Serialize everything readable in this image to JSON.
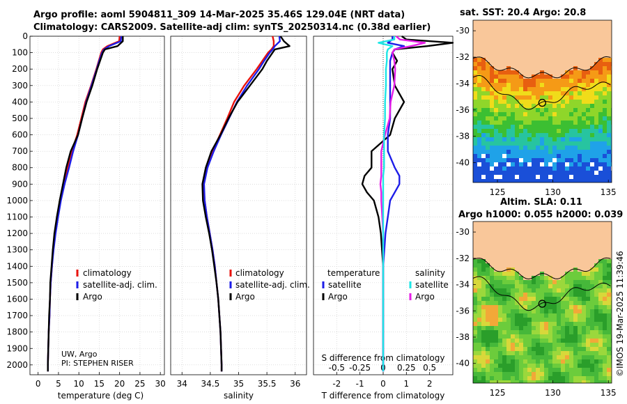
{
  "title_line1": "Argo profile: aoml 5904811_309 14-Mar-2025 35.46S 129.04E (NRT data)",
  "title_line2": "Climatology: CARS2009. Satellite-adj clim: synTS_20250314.nc (0.38d earlier)",
  "watermark": "©IMOS 19-Mar-2025 11:39:46",
  "colors": {
    "climatology": "#e8120c",
    "satellite": "#1d1de8",
    "argo": "#000000",
    "s_satellite": "#1de6e6",
    "s_argo": "#e61de6",
    "land": "#f9c79a"
  },
  "chart_data": [
    {
      "type": "line",
      "name": "temperature-profile",
      "xlabel": "temperature (deg C)",
      "ylabel": "",
      "xlim": [
        -2,
        31
      ],
      "ylim": [
        2060,
        0
      ],
      "xticks": [
        0,
        5,
        10,
        15,
        20,
        25,
        30
      ],
      "yticks": [
        0,
        100,
        200,
        300,
        400,
        500,
        600,
        700,
        800,
        900,
        1000,
        1100,
        1200,
        1300,
        1400,
        1500,
        1600,
        1700,
        1800,
        1900,
        2000
      ],
      "legend": [
        "climatology",
        "satellite-adj. clim.",
        "Argo"
      ],
      "legend_position": "lower-right",
      "annotation": [
        "UW, Argo",
        "PI: STEPHEN RISER"
      ],
      "depth": [
        0,
        30,
        60,
        80,
        100,
        150,
        200,
        300,
        400,
        500,
        600,
        700,
        800,
        900,
        1000,
        1100,
        1200,
        1300,
        1400,
        1500,
        1600,
        1700,
        1800,
        1900,
        2000,
        2040
      ],
      "series": [
        {
          "name": "climatology",
          "values": [
            20.0,
            19.9,
            17.0,
            15.9,
            15.5,
            14.9,
            14.3,
            13.0,
            11.6,
            10.6,
            9.6,
            8.3,
            7.3,
            6.2,
            5.4,
            4.7,
            4.1,
            3.7,
            3.4,
            3.1,
            2.9,
            2.8,
            2.6,
            2.5,
            2.4,
            2.4
          ]
        },
        {
          "name": "satellite-adj. clim.",
          "values": [
            20.4,
            20.3,
            17.4,
            16.2,
            15.7,
            15.0,
            14.4,
            13.1,
            11.8,
            10.8,
            9.8,
            8.6,
            7.6,
            6.5,
            5.6,
            4.9,
            4.3,
            3.8,
            3.4,
            3.1,
            2.9,
            2.8,
            2.6,
            2.5,
            2.4,
            2.4
          ]
        },
        {
          "name": "Argo",
          "values": [
            20.8,
            20.8,
            19.5,
            16.4,
            15.9,
            15.2,
            14.5,
            13.3,
            11.9,
            10.8,
            9.8,
            8.0,
            6.9,
            6.1,
            5.3,
            4.6,
            4.0,
            3.6,
            3.3,
            3.0,
            2.9,
            2.7,
            2.6,
            2.5,
            2.4,
            2.4
          ]
        }
      ]
    },
    {
      "type": "line",
      "name": "salinity-profile",
      "xlabel": "salinity",
      "ylabel": "",
      "xlim": [
        33.8,
        36.2
      ],
      "ylim": [
        2060,
        0
      ],
      "xticks": [
        34,
        34.5,
        35,
        35.5,
        36
      ],
      "legend": [
        "climatology",
        "satellite-adj. clim.",
        "Argo"
      ],
      "legend_position": "lower-right",
      "depth": [
        0,
        30,
        60,
        80,
        100,
        150,
        200,
        300,
        400,
        500,
        600,
        700,
        800,
        900,
        1000,
        1100,
        1200,
        1300,
        1400,
        1500,
        1600,
        1700,
        1800,
        1900,
        2000,
        2040
      ],
      "series": [
        {
          "name": "climatology",
          "values": [
            35.6,
            35.62,
            35.62,
            35.58,
            35.52,
            35.42,
            35.32,
            35.1,
            34.92,
            34.8,
            34.67,
            34.54,
            34.43,
            34.38,
            34.4,
            34.44,
            34.49,
            34.54,
            34.58,
            34.61,
            34.64,
            34.66,
            34.68,
            34.69,
            34.7,
            34.7
          ]
        },
        {
          "name": "satellite-adj. clim.",
          "values": [
            35.72,
            35.73,
            35.64,
            35.6,
            35.55,
            35.45,
            35.36,
            35.15,
            34.97,
            34.83,
            34.69,
            34.56,
            34.45,
            34.39,
            34.4,
            34.44,
            34.49,
            34.54,
            34.58,
            34.61,
            34.64,
            34.66,
            34.68,
            34.69,
            34.7,
            34.7
          ]
        },
        {
          "name": "Argo",
          "values": [
            35.74,
            35.8,
            35.9,
            35.64,
            35.6,
            35.5,
            35.42,
            35.2,
            34.98,
            34.82,
            34.68,
            34.52,
            34.42,
            34.36,
            34.37,
            34.42,
            34.48,
            34.53,
            34.57,
            34.61,
            34.64,
            34.66,
            34.68,
            34.69,
            34.7,
            34.7
          ]
        }
      ]
    },
    {
      "type": "line",
      "name": "difference-profile",
      "xlabel": "T difference from climatology",
      "x2label": "S difference from climatology",
      "xlim": [
        -3,
        3
      ],
      "ylim": [
        2060,
        0
      ],
      "xticks": [
        -2,
        -1,
        0,
        1,
        2
      ],
      "xtick_labels": [
        "-2",
        "-1",
        "0",
        "1",
        "2"
      ],
      "x2ticks": [
        -0.5,
        -0.25,
        0,
        0.25,
        0.5
      ],
      "x2tick_labels": [
        "-0.5",
        "-0.25",
        "0",
        "0.25",
        "0.5"
      ],
      "legend_temperature": {
        "heading": "temperature",
        "items": [
          "satellite",
          "Argo"
        ]
      },
      "legend_salinity": {
        "heading": "salinity",
        "items": [
          "satellite",
          "Argo"
        ]
      },
      "depth": [
        0,
        20,
        40,
        60,
        80,
        100,
        150,
        200,
        300,
        400,
        500,
        600,
        700,
        800,
        850,
        900,
        950,
        1000,
        1100,
        1200,
        1300,
        1400,
        1500,
        1600,
        1700,
        1800,
        1900,
        2000,
        2040
      ],
      "series": [
        {
          "name": "T satellite",
          "values": [
            0.4,
            0.4,
            0.2,
            0.9,
            0.5,
            0.4,
            0.3,
            0.3,
            0.3,
            0.3,
            0.3,
            0.2,
            0.2,
            0.5,
            0.7,
            0.7,
            0.5,
            0.3,
            0.2,
            0.1,
            0.05,
            0.0,
            0.0,
            0.0,
            0.0,
            0.0,
            0.0,
            0.0,
            0.0
          ]
        },
        {
          "name": "T Argo",
          "values": [
            0.8,
            1.0,
            3.0,
            1.9,
            0.5,
            0.4,
            0.6,
            0.4,
            0.5,
            0.9,
            0.5,
            0.3,
            -0.5,
            -0.5,
            -0.8,
            -0.9,
            -0.7,
            -0.4,
            -0.2,
            -0.1,
            -0.05,
            0.0,
            0.0,
            0.0,
            0.0,
            0.0,
            0.0,
            0.0,
            0.0
          ]
        },
        {
          "name": "S satellite",
          "values": [
            0.12,
            0.12,
            -0.05,
            0.1,
            0.05,
            0.04,
            0.04,
            0.03,
            0.03,
            0.02,
            0.02,
            0.01,
            0.01,
            0.01,
            0.0,
            0.0,
            0.0,
            0.0,
            0.0,
            0.0,
            0.0,
            0.0,
            0.0,
            0.0,
            0.0,
            0.0,
            0.0,
            0.0,
            0.0
          ]
        },
        {
          "name": "S Argo",
          "values": [
            0.14,
            0.18,
            0.45,
            0.3,
            0.12,
            0.1,
            0.12,
            0.13,
            0.12,
            0.08,
            0.07,
            0.02,
            -0.02,
            -0.02,
            -0.02,
            -0.03,
            -0.02,
            -0.02,
            -0.01,
            0.0,
            0.0,
            0.0,
            0.0,
            0.0,
            0.0,
            0.0,
            0.0,
            0.0,
            0.0
          ]
        }
      ]
    },
    {
      "type": "heatmap",
      "name": "sst-map",
      "title": "sat. SST: 20.4 Argo: 20.8",
      "xlim": [
        122.8,
        135.3
      ],
      "ylim": [
        -41.5,
        -29.2
      ],
      "xticks": [
        125,
        130,
        135
      ],
      "yticks": [
        -30,
        -32,
        -34,
        -36,
        -38,
        -40
      ],
      "float_position": [
        129.04,
        -35.46
      ]
    },
    {
      "type": "heatmap",
      "name": "sla-map",
      "title_line1": "Altim. SLA: 0.11",
      "title_line2": "Argo h1000: 0.055 h2000: 0.039",
      "xlim": [
        122.8,
        135.3
      ],
      "ylim": [
        -41.5,
        -29.2
      ],
      "xticks": [
        125,
        130,
        135
      ],
      "yticks": [
        -30,
        -32,
        -34,
        -36,
        -38,
        -40
      ],
      "float_position": [
        129.04,
        -35.46
      ]
    }
  ]
}
